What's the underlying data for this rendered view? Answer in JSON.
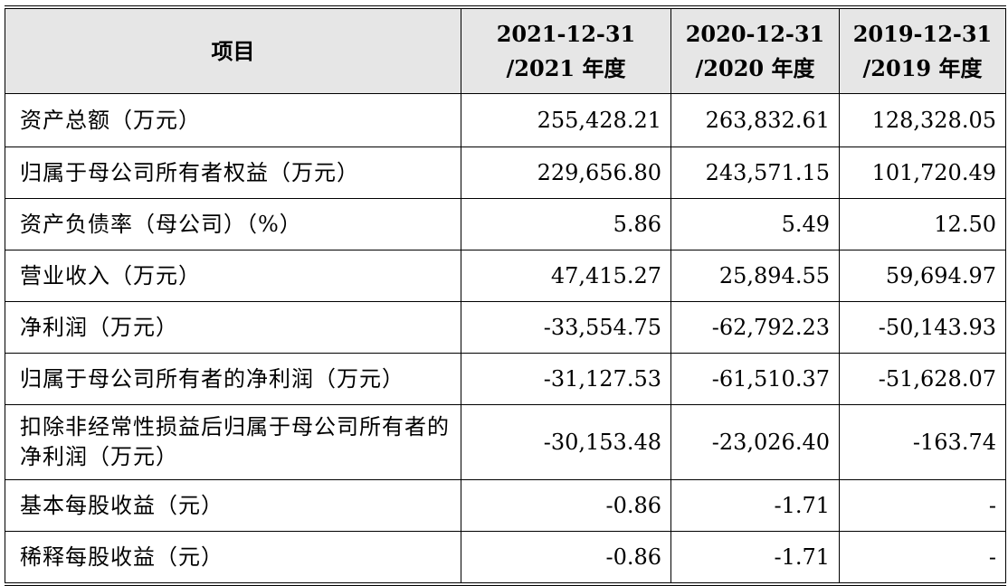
{
  "table": {
    "header": {
      "item": "项目",
      "columns": [
        {
          "line1": "2021-12-31",
          "line2": "/2021 年度"
        },
        {
          "line1": "2020-12-31",
          "line2": "/2020 年度"
        },
        {
          "line1": "2019-12-31",
          "line2": "/2019 年度"
        }
      ]
    },
    "rows": [
      {
        "label": "资产总额（万元）",
        "v2021": "255,428.21",
        "v2020": "263,832.61",
        "v2019": "128,328.05"
      },
      {
        "label": "归属于母公司所有者权益（万元）",
        "v2021": "229,656.80",
        "v2020": "243,571.15",
        "v2019": "101,720.49"
      },
      {
        "label": "资产负债率（母公司）（%）",
        "v2021": "5.86",
        "v2020": "5.49",
        "v2019": "12.50"
      },
      {
        "label": "营业收入（万元）",
        "v2021": "47,415.27",
        "v2020": "25,894.55",
        "v2019": "59,694.97"
      },
      {
        "label": "净利润（万元）",
        "v2021": "-33,554.75",
        "v2020": "-62,792.23",
        "v2019": "-50,143.93"
      },
      {
        "label": "归属于母公司所有者的净利润（万元）",
        "v2021": "-31,127.53",
        "v2020": "-61,510.37",
        "v2019": "-51,628.07"
      },
      {
        "label": "扣除非经常性损益后归属于母公司所有者的净利润（万元）",
        "v2021": "-30,153.48",
        "v2020": "-23,026.40",
        "v2019": "-163.74"
      },
      {
        "label": "基本每股收益（元）",
        "v2021": "-0.86",
        "v2020": "-1.71",
        "v2019": "-"
      },
      {
        "label": "稀释每股收益（元）",
        "v2021": "-0.86",
        "v2020": "-1.71",
        "v2019": "-"
      }
    ]
  }
}
